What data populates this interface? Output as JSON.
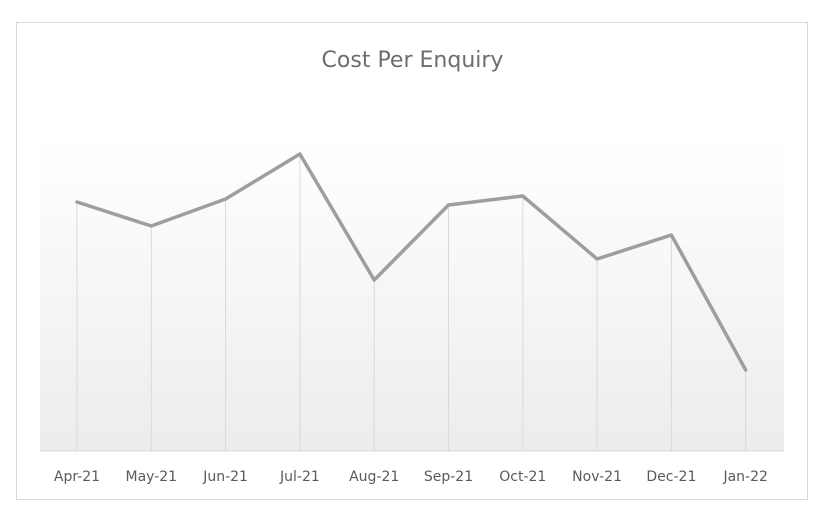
{
  "chart_data": {
    "type": "line",
    "title": "Cost Per Enquiry",
    "xlabel": "",
    "ylabel": "",
    "categories": [
      "Apr-21",
      "May-21",
      "Jun-21",
      "Jul-21",
      "Aug-21",
      "Sep-21",
      "Oct-21",
      "Nov-21",
      "Dec-21",
      "Jan-22"
    ],
    "series": [
      {
        "values": [
          83,
          75,
          84,
          99,
          57,
          82,
          85,
          64,
          72,
          27
        ]
      }
    ],
    "ylim": [
      0,
      110
    ],
    "grid": "vertical drop lines",
    "legend": "none",
    "colors": {
      "line": "#9e9e9e",
      "droplines": "#d9d9d9",
      "gradient_top": "#ffffff",
      "gradient_bottom": "#ececec"
    }
  }
}
